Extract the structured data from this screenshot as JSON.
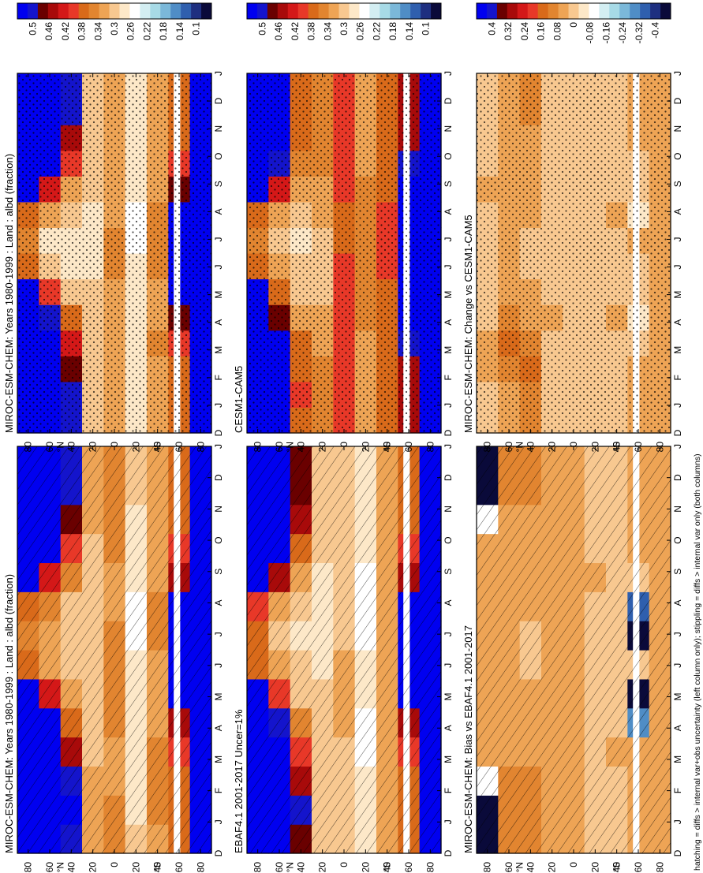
{
  "footer": "hatching = diffs > internal var+obs uncertainty (left column only); stippling = diffs > internal var only (both columns)",
  "palettes": {
    "abs": [
      "#0a0a3a",
      "#1e2f80",
      "#2f5fae",
      "#4f8dc6",
      "#7bb8d9",
      "#a7dae6",
      "#d3eef2",
      "#ffffff",
      "#fde8c8",
      "#f8c890",
      "#eea455",
      "#e28530",
      "#d96a1a",
      "#e83828",
      "#d41818",
      "#a80a0a",
      "#6a0000",
      "#1414cc",
      "#0000f0"
    ],
    "diff": [
      "#0a0a3a",
      "#1e2f80",
      "#2f5fae",
      "#4f8dc6",
      "#7bb8d9",
      "#a7dae6",
      "#d3eef2",
      "#ffffff",
      "#fde8c8",
      "#f8c890",
      "#eea455",
      "#e28530",
      "#d96a1a",
      "#e83828",
      "#d41818",
      "#a80a0a",
      "#6a0000",
      "#1414cc",
      "#0000f0"
    ]
  },
  "chart_data": [
    {
      "type": "heatmap",
      "title": "MIROC-ESM-CHEM: Years 1980-1999 : Land : albd (fraction)",
      "months": [
        "D",
        "J",
        "F",
        "M",
        "A",
        "M",
        "J",
        "J",
        "A",
        "S",
        "O",
        "N",
        "D",
        "J"
      ],
      "lat_ticks": [
        "80",
        "60",
        "40",
        "20",
        "0",
        "20",
        "40",
        "60",
        "80"
      ],
      "hemisphere_labels": [
        "°N",
        "°S"
      ],
      "colorbar": [
        "0.5",
        "0.46",
        "0.42",
        "0.38",
        "0.34",
        "0.3",
        "0.26",
        "0.22",
        "0.18",
        "0.14",
        "0.1"
      ],
      "overlay": "hatch",
      "palette": "abs",
      "kind": "abs",
      "lat": [
        80,
        60,
        40,
        20,
        0,
        -20,
        -40,
        -60,
        -80
      ],
      "values": [
        [
          0.6,
          0.6,
          0.6,
          0.6,
          0.6,
          0.55,
          0.36,
          0.34,
          0.36,
          0.55,
          0.6,
          0.6,
          0.6,
          0.6
        ],
        [
          0.58,
          0.58,
          0.58,
          0.56,
          0.52,
          0.42,
          0.33,
          0.32,
          0.34,
          0.42,
          0.52,
          0.56,
          0.58,
          0.58
        ],
        [
          0.5,
          0.52,
          0.48,
          0.44,
          0.38,
          0.33,
          0.3,
          0.29,
          0.31,
          0.34,
          0.4,
          0.46,
          0.5,
          0.5
        ],
        [
          0.33,
          0.33,
          0.32,
          0.31,
          0.31,
          0.3,
          0.3,
          0.29,
          0.3,
          0.3,
          0.31,
          0.32,
          0.33,
          0.33
        ],
        [
          0.34,
          0.34,
          0.33,
          0.33,
          0.34,
          0.34,
          0.34,
          0.34,
          0.33,
          0.33,
          0.34,
          0.34,
          0.34,
          0.34
        ],
        [
          0.29,
          0.28,
          0.28,
          0.27,
          0.28,
          0.28,
          0.27,
          0.26,
          0.26,
          0.27,
          0.28,
          0.28,
          0.29,
          0.29
        ],
        [
          0.33,
          0.34,
          0.34,
          0.34,
          0.33,
          0.33,
          0.33,
          0.34,
          0.34,
          0.33,
          0.33,
          0.33,
          0.33,
          0.33
        ],
        [
          0.38,
          0.38,
          0.38,
          0.4,
          0.45,
          0.55,
          0.6,
          0.6,
          0.55,
          0.45,
          0.4,
          0.38,
          0.38,
          0.38
        ],
        [
          0.6,
          0.6,
          0.6,
          0.6,
          0.6,
          0.6,
          0.6,
          0.6,
          0.6,
          0.6,
          0.6,
          0.6,
          0.6,
          0.6
        ]
      ]
    },
    {
      "type": "heatmap",
      "title": "MIROC-ESM-CHEM: Years 1980-1999 : Land : albd (fraction)",
      "months": [
        "D",
        "J",
        "F",
        "M",
        "A",
        "M",
        "J",
        "J",
        "A",
        "S",
        "O",
        "N",
        "D",
        "J"
      ],
      "lat_ticks": [
        "80",
        "60",
        "40",
        "20",
        "0",
        "20",
        "40",
        "60",
        "80"
      ],
      "hemisphere_labels": [
        "°N",
        "°S"
      ],
      "colorbar": [
        "0.5",
        "0.46",
        "0.42",
        "0.38",
        "0.34",
        "0.3",
        "0.26",
        "0.22",
        "0.18",
        "0.14",
        "0.1"
      ],
      "overlay": "stipple",
      "palette": "abs",
      "kind": "abs",
      "lat": [
        80,
        60,
        40,
        20,
        0,
        -20,
        -40,
        -60,
        -80
      ],
      "values": [
        [
          0.6,
          0.6,
          0.6,
          0.6,
          0.6,
          0.55,
          0.38,
          0.35,
          0.38,
          0.55,
          0.6,
          0.6,
          0.6,
          0.6
        ],
        [
          0.58,
          0.58,
          0.58,
          0.56,
          0.5,
          0.4,
          0.3,
          0.28,
          0.32,
          0.42,
          0.52,
          0.56,
          0.58,
          0.58
        ],
        [
          0.48,
          0.5,
          0.46,
          0.42,
          0.36,
          0.31,
          0.28,
          0.27,
          0.29,
          0.33,
          0.4,
          0.45,
          0.48,
          0.48
        ],
        [
          0.3,
          0.31,
          0.31,
          0.3,
          0.29,
          0.29,
          0.28,
          0.28,
          0.28,
          0.29,
          0.3,
          0.3,
          0.3,
          0.3
        ],
        [
          0.32,
          0.33,
          0.32,
          0.32,
          0.33,
          0.33,
          0.34,
          0.34,
          0.33,
          0.32,
          0.32,
          0.32,
          0.32,
          0.32
        ],
        [
          0.28,
          0.28,
          0.28,
          0.27,
          0.27,
          0.27,
          0.27,
          0.26,
          0.26,
          0.27,
          0.27,
          0.28,
          0.28,
          0.28
        ],
        [
          0.32,
          0.33,
          0.33,
          0.34,
          0.33,
          0.33,
          0.34,
          0.35,
          0.34,
          0.33,
          0.33,
          0.32,
          0.32,
          0.32
        ],
        [
          0.38,
          0.38,
          0.38,
          0.4,
          0.46,
          0.55,
          0.6,
          0.6,
          0.55,
          0.46,
          0.4,
          0.38,
          0.38,
          0.38
        ],
        [
          0.6,
          0.6,
          0.6,
          0.6,
          0.6,
          0.6,
          0.6,
          0.6,
          0.6,
          0.6,
          0.6,
          0.6,
          0.6,
          0.6
        ]
      ]
    },
    {
      "type": "heatmap",
      "title": "EBAF4.1 2001-2017 Uncer=1%",
      "months": [
        "D",
        "J",
        "F",
        "M",
        "A",
        "M",
        "J",
        "J",
        "A",
        "S",
        "O",
        "N",
        "D",
        "J"
      ],
      "lat_ticks": [
        "80",
        "60",
        "40",
        "20",
        "0",
        "20",
        "40",
        "60",
        "80"
      ],
      "hemisphere_labels": [
        "°N",
        "°S"
      ],
      "colorbar": [
        "0.5",
        "0.46",
        "0.42",
        "0.38",
        "0.34",
        "0.3",
        "0.26",
        "0.22",
        "0.18",
        "0.14",
        "0.1"
      ],
      "overlay": "hatch",
      "palette": "abs",
      "kind": "abs",
      "lat": [
        80,
        60,
        40,
        20,
        0,
        -20,
        -40,
        -60,
        -80
      ],
      "values": [
        [
          0.6,
          0.6,
          0.6,
          0.6,
          0.6,
          0.55,
          0.38,
          0.36,
          0.4,
          0.55,
          0.6,
          0.6,
          0.6,
          0.6
        ],
        [
          0.58,
          0.58,
          0.58,
          0.56,
          0.5,
          0.4,
          0.32,
          0.3,
          0.33,
          0.44,
          0.52,
          0.56,
          0.58,
          0.58
        ],
        [
          0.46,
          0.48,
          0.44,
          0.4,
          0.35,
          0.31,
          0.29,
          0.28,
          0.3,
          0.33,
          0.38,
          0.44,
          0.46,
          0.46
        ],
        [
          0.3,
          0.3,
          0.3,
          0.29,
          0.29,
          0.29,
          0.28,
          0.27,
          0.27,
          0.28,
          0.29,
          0.3,
          0.3,
          0.3
        ],
        [
          0.31,
          0.31,
          0.31,
          0.31,
          0.32,
          0.32,
          0.32,
          0.31,
          0.3,
          0.3,
          0.3,
          0.31,
          0.31,
          0.31
        ],
        [
          0.28,
          0.27,
          0.27,
          0.26,
          0.26,
          0.27,
          0.27,
          0.26,
          0.25,
          0.25,
          0.27,
          0.28,
          0.28,
          0.28
        ],
        [
          0.32,
          0.33,
          0.33,
          0.32,
          0.32,
          0.32,
          0.33,
          0.33,
          0.33,
          0.32,
          0.32,
          0.32,
          0.32,
          0.32
        ],
        [
          0.38,
          0.38,
          0.38,
          0.4,
          0.45,
          0.54,
          0.6,
          0.6,
          0.55,
          0.45,
          0.4,
          0.38,
          0.38,
          0.38
        ],
        [
          0.6,
          0.6,
          0.6,
          0.6,
          0.6,
          0.6,
          0.6,
          0.6,
          0.6,
          0.6,
          0.6,
          0.6,
          0.6,
          0.6
        ]
      ]
    },
    {
      "type": "heatmap",
      "title": "CESM1-CAM5",
      "months": [
        "D",
        "J",
        "F",
        "M",
        "A",
        "M",
        "J",
        "J",
        "A",
        "S",
        "O",
        "N",
        "D",
        "J"
      ],
      "lat_ticks": [
        "80",
        "60",
        "40",
        "20",
        "0",
        "20",
        "40",
        "60",
        "80"
      ],
      "hemisphere_labels": [
        "°N",
        "°S"
      ],
      "colorbar": [
        "0.5",
        "0.46",
        "0.42",
        "0.38",
        "0.34",
        "0.3",
        "0.26",
        "0.22",
        "0.18",
        "0.14",
        "0.1"
      ],
      "overlay": "stipple",
      "palette": "abs",
      "kind": "abs",
      "lat": [
        80,
        60,
        40,
        20,
        0,
        -20,
        -40,
        -60,
        -80
      ],
      "values": [
        [
          0.6,
          0.6,
          0.6,
          0.6,
          0.6,
          0.55,
          0.37,
          0.34,
          0.37,
          0.55,
          0.6,
          0.6,
          0.6,
          0.6
        ],
        [
          0.56,
          0.56,
          0.55,
          0.52,
          0.46,
          0.38,
          0.32,
          0.3,
          0.33,
          0.42,
          0.5,
          0.54,
          0.56,
          0.56
        ],
        [
          0.38,
          0.4,
          0.38,
          0.36,
          0.33,
          0.31,
          0.29,
          0.28,
          0.3,
          0.32,
          0.35,
          0.37,
          0.38,
          0.38
        ],
        [
          0.34,
          0.34,
          0.34,
          0.33,
          0.32,
          0.31,
          0.31,
          0.31,
          0.32,
          0.33,
          0.34,
          0.34,
          0.34,
          0.34
        ],
        [
          0.4,
          0.4,
          0.4,
          0.4,
          0.4,
          0.39,
          0.39,
          0.38,
          0.38,
          0.39,
          0.4,
          0.4,
          0.4,
          0.4
        ],
        [
          0.33,
          0.33,
          0.33,
          0.33,
          0.34,
          0.34,
          0.34,
          0.34,
          0.34,
          0.34,
          0.33,
          0.33,
          0.33,
          0.33
        ],
        [
          0.37,
          0.38,
          0.38,
          0.38,
          0.38,
          0.38,
          0.39,
          0.4,
          0.39,
          0.38,
          0.38,
          0.37,
          0.37,
          0.37
        ],
        [
          0.45,
          0.45,
          0.45,
          0.48,
          0.52,
          0.58,
          0.6,
          0.6,
          0.58,
          0.52,
          0.48,
          0.45,
          0.45,
          0.45
        ],
        [
          0.6,
          0.6,
          0.6,
          0.6,
          0.6,
          0.6,
          0.6,
          0.6,
          0.6,
          0.6,
          0.6,
          0.6,
          0.6,
          0.6
        ]
      ]
    },
    {
      "type": "heatmap",
      "title": "MIROC-ESM-CHEM: Bias vs EBAF4.1 2001-2017",
      "months": [
        "D",
        "J",
        "F",
        "M",
        "A",
        "M",
        "J",
        "J",
        "A",
        "S",
        "O",
        "N",
        "D",
        "J"
      ],
      "lat_ticks": [
        "80",
        "60",
        "40",
        "20",
        "0",
        "20",
        "40",
        "60",
        "80"
      ],
      "hemisphere_labels": [
        "°N",
        "°S"
      ],
      "colorbar": [
        "0.4",
        "0.32",
        "0.24",
        "0.16",
        "0.08",
        "0",
        "-0.08",
        "-0.16",
        "-0.24",
        "-0.32",
        "-0.4"
      ],
      "overlay": "hatch",
      "palette": "diff",
      "kind": "diff",
      "lat": [
        80,
        60,
        40,
        20,
        0,
        -20,
        -40,
        -60,
        -80
      ],
      "values": [
        [
          -0.45,
          -0.45,
          -0.1,
          0.04,
          0.05,
          0.04,
          0.03,
          0.04,
          0.05,
          0.04,
          0.03,
          -0.1,
          -0.45,
          -0.45
        ],
        [
          0.08,
          0.09,
          0.1,
          0.06,
          0.04,
          0.04,
          0.03,
          0.04,
          0.06,
          0.05,
          0.04,
          0.06,
          0.08,
          0.08
        ],
        [
          0.09,
          0.1,
          0.08,
          0.06,
          0.04,
          0.03,
          0.02,
          0.02,
          0.03,
          0.04,
          0.05,
          0.07,
          0.09,
          0.09
        ],
        [
          0.04,
          0.04,
          0.03,
          0.03,
          0.04,
          0.03,
          0.03,
          0.03,
          0.04,
          0.04,
          0.03,
          0.03,
          0.04,
          0.04
        ],
        [
          0.04,
          0.04,
          0.03,
          0.03,
          0.03,
          0.03,
          0.03,
          0.03,
          0.04,
          0.04,
          0.04,
          0.04,
          0.04,
          0.04
        ],
        [
          0.02,
          0.02,
          0.02,
          0.02,
          0.02,
          0.02,
          0.01,
          0.01,
          0.02,
          0.03,
          0.02,
          0.02,
          0.02,
          0.02
        ],
        [
          0.02,
          0.02,
          0.02,
          0.03,
          0.02,
          0.01,
          0.01,
          0.02,
          0.02,
          0.02,
          0.02,
          0.02,
          0.02,
          0.02
        ],
        [
          0.04,
          0.04,
          0.04,
          0.03,
          -0.3,
          -0.4,
          -0.02,
          -0.4,
          -0.35,
          0.02,
          0.03,
          0.04,
          0.04,
          0.04
        ],
        [
          0.06,
          0.06,
          0.06,
          0.06,
          0.06,
          0.06,
          0.06,
          0.06,
          0.06,
          0.06,
          0.06,
          0.06,
          0.06,
          0.06
        ]
      ]
    },
    {
      "type": "heatmap",
      "title": "MIROC-ESM-CHEM: Change vs CESM1-CAM5",
      "months": [
        "D",
        "J",
        "F",
        "M",
        "A",
        "M",
        "J",
        "J",
        "A",
        "S",
        "O",
        "N",
        "D",
        "J"
      ],
      "lat_ticks": [
        "80",
        "60",
        "40",
        "20",
        "0",
        "20",
        "40",
        "60",
        "80"
      ],
      "hemisphere_labels": [
        "°N",
        "°S"
      ],
      "colorbar": [
        "0.4",
        "0.32",
        "0.24",
        "0.16",
        "0.08",
        "0",
        "-0.08",
        "-0.16",
        "-0.24",
        "-0.32",
        "-0.4"
      ],
      "overlay": "stipple",
      "palette": "diff",
      "kind": "diff",
      "lat": [
        80,
        60,
        40,
        20,
        0,
        -20,
        -40,
        -60,
        -80
      ],
      "values": [
        [
          0.02,
          0.02,
          0.03,
          0.03,
          0.02,
          0.02,
          0.01,
          0.01,
          0.02,
          0.03,
          0.02,
          0.02,
          0.02,
          0.02
        ],
        [
          0.06,
          0.07,
          0.1,
          0.12,
          0.08,
          0.05,
          0.04,
          0.04,
          0.05,
          0.05,
          0.05,
          0.05,
          0.06,
          0.06
        ],
        [
          0.08,
          0.1,
          0.12,
          0.1,
          0.07,
          0.04,
          0.02,
          0.01,
          0.03,
          0.04,
          0.05,
          0.06,
          0.08,
          0.08
        ],
        [
          0.02,
          0.02,
          0.02,
          0.02,
          0.03,
          0.02,
          0.01,
          0.01,
          0.02,
          0.02,
          0.02,
          0.02,
          0.02,
          0.02
        ],
        [
          -0.02,
          -0.02,
          0.0,
          0.01,
          0.01,
          0.0,
          -0.01,
          -0.02,
          -0.01,
          0.0,
          0.01,
          0.0,
          -0.02,
          -0.02
        ],
        [
          0.0,
          0.0,
          0.01,
          0.01,
          0.02,
          0.02,
          0.01,
          0.01,
          0.02,
          0.02,
          0.01,
          0.0,
          0.0,
          0.0
        ],
        [
          0.01,
          0.01,
          0.02,
          0.02,
          0.03,
          0.02,
          0.02,
          0.02,
          0.03,
          0.02,
          0.02,
          0.01,
          0.01,
          0.01
        ],
        [
          0.03,
          0.03,
          0.04,
          0.02,
          -0.03,
          -0.02,
          0.02,
          0.03,
          -0.05,
          0.01,
          0.02,
          0.03,
          0.03,
          0.03
        ],
        [
          0.03,
          0.03,
          0.03,
          0.03,
          0.03,
          0.03,
          0.03,
          0.03,
          0.03,
          0.03,
          0.03,
          0.03,
          0.03,
          0.03
        ]
      ]
    }
  ]
}
